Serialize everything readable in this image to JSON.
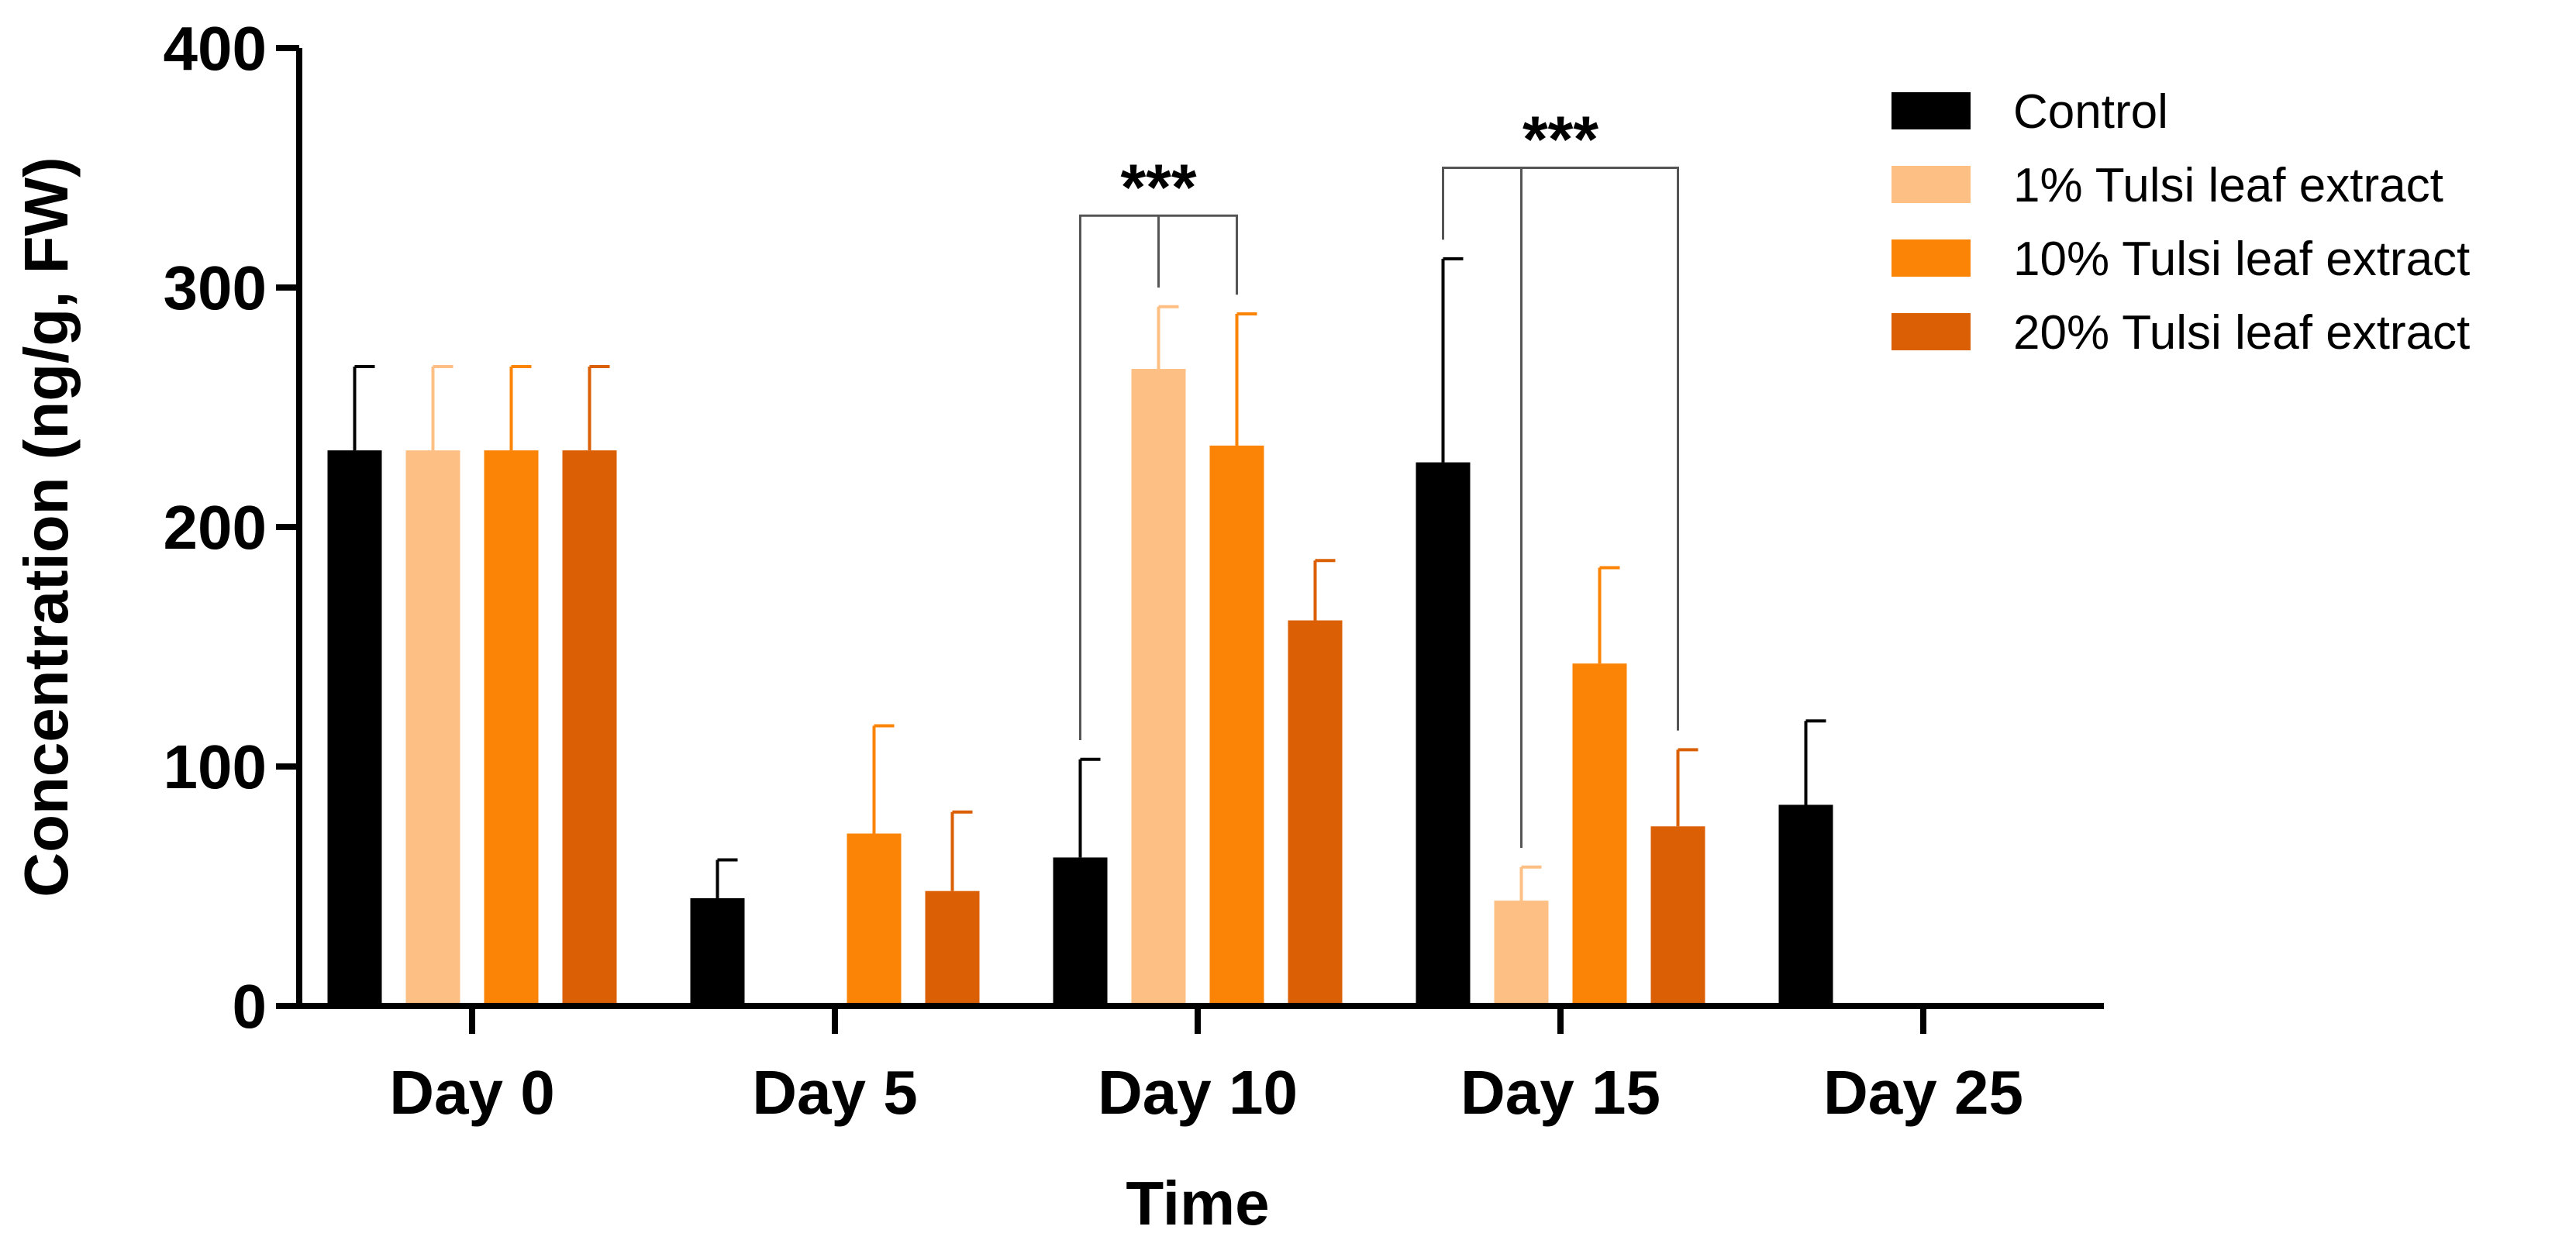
{
  "chart_data": {
    "type": "bar",
    "title": "",
    "xlabel": "Time",
    "ylabel": "Concentration (ng/g, FW)",
    "ylim": [
      0,
      400
    ],
    "yticks": [
      "0",
      "100",
      "200",
      "300",
      "400"
    ],
    "categories": [
      "Day 0",
      "Day 5",
      "Day 10",
      "Day 15",
      "Day 25"
    ],
    "series": [
      {
        "name": "Control",
        "color": "#000000",
        "values": [
          232,
          45,
          62,
          227,
          84
        ],
        "errors": [
          35,
          16,
          41,
          85,
          35
        ]
      },
      {
        "name": "1% Tulsi leaf extract",
        "color": "#fdbf83",
        "values": [
          232,
          0,
          266,
          44,
          0
        ],
        "errors": [
          35,
          0,
          26,
          14,
          0
        ]
      },
      {
        "name": "10% Tulsi leaf extract",
        "color": "#fb8406",
        "values": [
          232,
          72,
          234,
          143,
          0
        ],
        "errors": [
          35,
          45,
          55,
          40,
          0
        ]
      },
      {
        "name": "20% Tulsi leaf extract",
        "color": "#db5f05",
        "values": [
          232,
          48,
          161,
          75,
          0
        ],
        "errors": [
          35,
          33,
          25,
          32,
          0
        ]
      }
    ],
    "legend_position": "top-right",
    "annotations": [
      {
        "text": "***",
        "category": "Day 10",
        "from_series": 0,
        "to_series": 2,
        "level": 330
      },
      {
        "text": "***",
        "category": "Day 15",
        "from_series": 0,
        "to_series": 3,
        "level": 350
      }
    ]
  }
}
